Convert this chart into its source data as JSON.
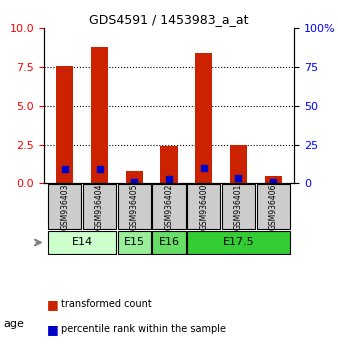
{
  "title": "GDS4591 / 1453983_a_at",
  "samples": [
    "GSM936403",
    "GSM936404",
    "GSM936405",
    "GSM936402",
    "GSM936400",
    "GSM936401",
    "GSM936406"
  ],
  "transformed_count": [
    7.6,
    8.8,
    0.8,
    2.4,
    8.4,
    2.5,
    0.5
  ],
  "percentile_rank": [
    9.3,
    9.4,
    1.1,
    3.0,
    9.8,
    3.6,
    1.1
  ],
  "age_groups": [
    {
      "label": "E14",
      "samples": [
        0,
        1
      ],
      "color": "#ccffcc"
    },
    {
      "label": "E15",
      "samples": [
        2
      ],
      "color": "#99ee99"
    },
    {
      "label": "E16",
      "samples": [
        3
      ],
      "color": "#66dd66"
    },
    {
      "label": "E17.5",
      "samples": [
        4,
        5,
        6
      ],
      "color": "#33cc33"
    }
  ],
  "ylim_left": [
    0,
    10
  ],
  "ylim_right": [
    0,
    100
  ],
  "yticks_left": [
    0,
    2.5,
    5,
    7.5,
    10
  ],
  "yticks_right": [
    0,
    25,
    50,
    75,
    100
  ],
  "bar_color": "#cc2200",
  "dot_color": "#0000cc",
  "grid_color": "#000000",
  "sample_box_color": "#cccccc",
  "legend_red_label": "transformed count",
  "legend_blue_label": "percentile rank within the sample",
  "age_label": "age"
}
